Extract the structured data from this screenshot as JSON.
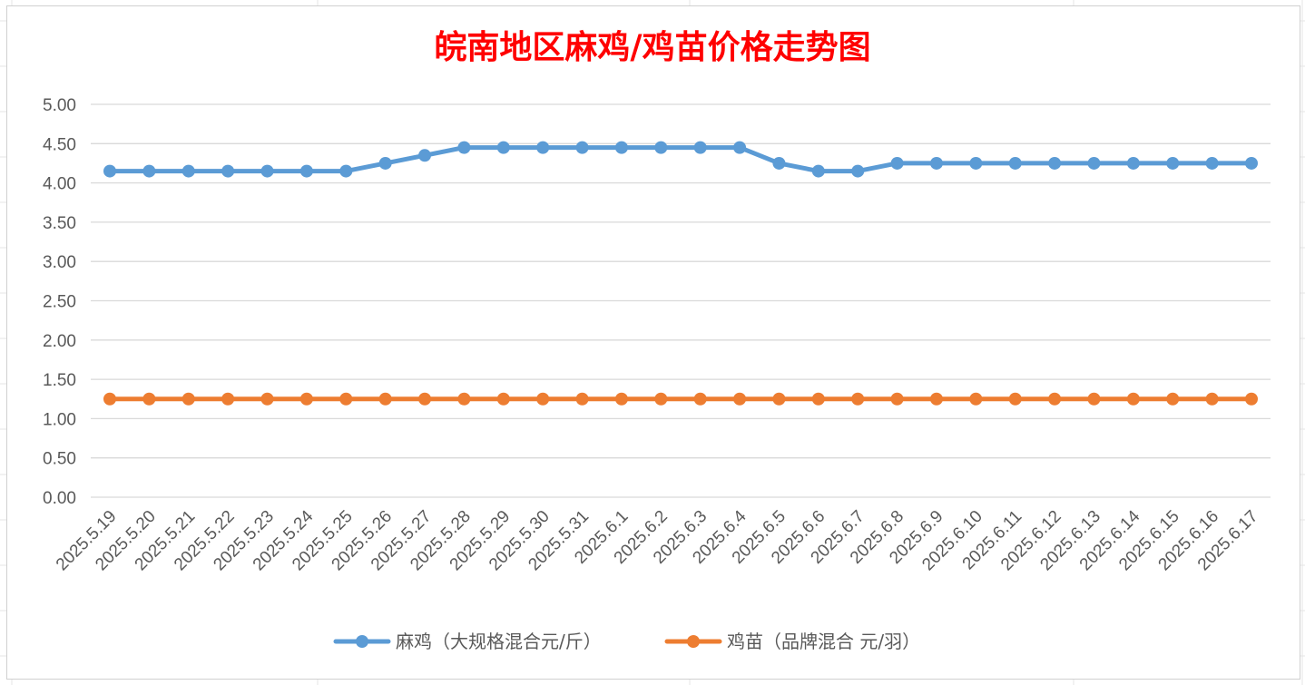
{
  "chart_data": {
    "type": "line",
    "title": "皖南地区麻鸡/鸡苗价格走势图",
    "xlabel": "",
    "ylabel": "",
    "ylim": [
      0,
      5
    ],
    "y_ticks": [
      "0.00",
      "0.50",
      "1.00",
      "1.50",
      "2.00",
      "2.50",
      "3.00",
      "3.50",
      "4.00",
      "4.50",
      "5.00"
    ],
    "grid": true,
    "legend_position": "bottom",
    "categories": [
      "2025.5.19",
      "2025.5.20",
      "2025.5.21",
      "2025.5.22",
      "2025.5.23",
      "2025.5.24",
      "2025.5.25",
      "2025.5.26",
      "2025.5.27",
      "2025.5.28",
      "2025.5.29",
      "2025.5.30",
      "2025.5.31",
      "2025.6.1",
      "2025.6.2",
      "2025.6.3",
      "2025.6.4",
      "2025.6.5",
      "2025.6.6",
      "2025.6.7",
      "2025.6.8",
      "2025.6.9",
      "2025.6.10",
      "2025.6.11",
      "2025.6.12",
      "2025.6.13",
      "2025.6.14",
      "2025.6.15",
      "2025.6.16",
      "2025.6.17"
    ],
    "series": [
      {
        "name": "麻鸡（大规格混合元/斤）",
        "color": "#5b9bd5",
        "values": [
          4.15,
          4.15,
          4.15,
          4.15,
          4.15,
          4.15,
          4.15,
          4.25,
          4.35,
          4.45,
          4.45,
          4.45,
          4.45,
          4.45,
          4.45,
          4.45,
          4.45,
          4.25,
          4.15,
          4.15,
          4.25,
          4.25,
          4.25,
          4.25,
          4.25,
          4.25,
          4.25,
          4.25,
          4.25,
          4.25
        ]
      },
      {
        "name": "鸡苗（品牌混合 元/羽）",
        "color": "#ed7d31",
        "values": [
          1.25,
          1.25,
          1.25,
          1.25,
          1.25,
          1.25,
          1.25,
          1.25,
          1.25,
          1.25,
          1.25,
          1.25,
          1.25,
          1.25,
          1.25,
          1.25,
          1.25,
          1.25,
          1.25,
          1.25,
          1.25,
          1.25,
          1.25,
          1.25,
          1.25,
          1.25,
          1.25,
          1.25,
          1.25,
          1.25
        ]
      }
    ]
  },
  "colors": {
    "title": "#ff0000",
    "gridline": "#d9d9d9",
    "axis_text": "#595959"
  }
}
